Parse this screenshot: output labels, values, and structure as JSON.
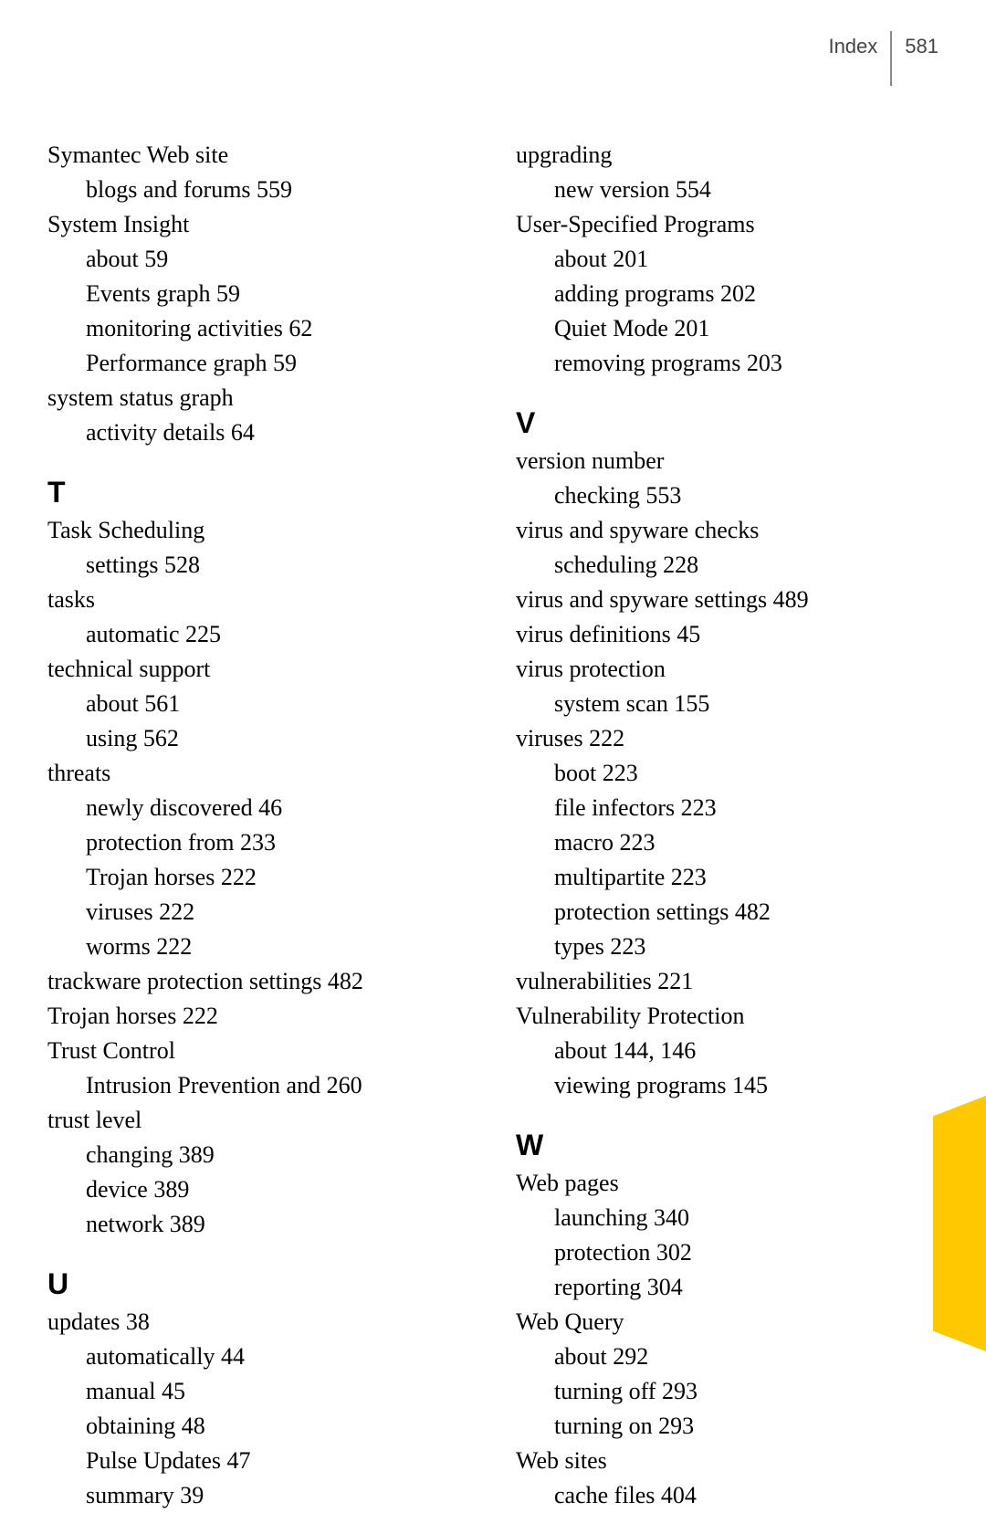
{
  "header": {
    "label": "Index",
    "page": "581"
  },
  "yellow_tab_color": "#ffc800",
  "left_col": {
    "pre_entries": [
      {
        "text": "Symantec Web site",
        "indent": 0
      },
      {
        "text": "blogs and forums  559",
        "indent": 1
      },
      {
        "text": "System Insight",
        "indent": 0
      },
      {
        "text": "about  59",
        "indent": 1
      },
      {
        "text": "Events graph  59",
        "indent": 1
      },
      {
        "text": "monitoring activities  62",
        "indent": 1
      },
      {
        "text": "Performance graph  59",
        "indent": 1
      },
      {
        "text": "system status graph",
        "indent": 0
      },
      {
        "text": "activity details  64",
        "indent": 1
      }
    ],
    "sections": [
      {
        "letter": "T",
        "entries": [
          {
            "text": "Task Scheduling",
            "indent": 0
          },
          {
            "text": "settings  528",
            "indent": 1
          },
          {
            "text": "tasks",
            "indent": 0
          },
          {
            "text": "automatic  225",
            "indent": 1
          },
          {
            "text": "technical support",
            "indent": 0
          },
          {
            "text": "about  561",
            "indent": 1
          },
          {
            "text": "using  562",
            "indent": 1
          },
          {
            "text": "threats",
            "indent": 0
          },
          {
            "text": "newly discovered  46",
            "indent": 1
          },
          {
            "text": "protection from  233",
            "indent": 1
          },
          {
            "text": "Trojan horses  222",
            "indent": 1
          },
          {
            "text": "viruses  222",
            "indent": 1
          },
          {
            "text": "worms  222",
            "indent": 1
          },
          {
            "text": "trackware protection settings  482",
            "indent": 0
          },
          {
            "text": "Trojan horses  222",
            "indent": 0
          },
          {
            "text": "Trust Control",
            "indent": 0
          },
          {
            "text": "Intrusion Prevention and  260",
            "indent": 1
          },
          {
            "text": "trust level",
            "indent": 0
          },
          {
            "text": "changing  389",
            "indent": 1
          },
          {
            "text": "device  389",
            "indent": 1
          },
          {
            "text": "network  389",
            "indent": 1
          }
        ]
      },
      {
        "letter": "U",
        "entries": [
          {
            "text": "updates  38",
            "indent": 0
          },
          {
            "text": "automatically  44",
            "indent": 1
          },
          {
            "text": "manual  45",
            "indent": 1
          },
          {
            "text": "obtaining  48",
            "indent": 1
          },
          {
            "text": "Pulse Updates  47",
            "indent": 1
          },
          {
            "text": "summary  39",
            "indent": 1
          }
        ]
      }
    ]
  },
  "right_col": {
    "pre_entries": [
      {
        "text": "upgrading",
        "indent": 0
      },
      {
        "text": "new version  554",
        "indent": 1
      },
      {
        "text": "User-Specified Programs",
        "indent": 0
      },
      {
        "text": "about  201",
        "indent": 1
      },
      {
        "text": "adding programs  202",
        "indent": 1
      },
      {
        "text": "Quiet Mode  201",
        "indent": 1
      },
      {
        "text": "removing programs  203",
        "indent": 1
      }
    ],
    "sections": [
      {
        "letter": "V",
        "entries": [
          {
            "text": "version number",
            "indent": 0
          },
          {
            "text": "checking  553",
            "indent": 1
          },
          {
            "text": "virus and spyware checks",
            "indent": 0
          },
          {
            "text": "scheduling  228",
            "indent": 1
          },
          {
            "text": "virus and spyware settings  489",
            "indent": 0
          },
          {
            "text": "virus definitions  45",
            "indent": 0
          },
          {
            "text": "virus protection",
            "indent": 0
          },
          {
            "text": "system scan  155",
            "indent": 1
          },
          {
            "text": "viruses  222",
            "indent": 0
          },
          {
            "text": "boot  223",
            "indent": 1
          },
          {
            "text": "file infectors  223",
            "indent": 1
          },
          {
            "text": "macro  223",
            "indent": 1
          },
          {
            "text": "multipartite  223",
            "indent": 1
          },
          {
            "text": "protection settings  482",
            "indent": 1
          },
          {
            "text": "types  223",
            "indent": 1
          },
          {
            "text": "vulnerabilities  221",
            "indent": 0
          },
          {
            "text": "Vulnerability Protection",
            "indent": 0
          },
          {
            "text": "about  144, 146",
            "indent": 1
          },
          {
            "text": "viewing programs  145",
            "indent": 1
          }
        ]
      },
      {
        "letter": "W",
        "entries": [
          {
            "text": "Web pages",
            "indent": 0
          },
          {
            "text": "launching  340",
            "indent": 1
          },
          {
            "text": "protection  302",
            "indent": 1
          },
          {
            "text": "reporting  304",
            "indent": 1
          },
          {
            "text": "Web Query",
            "indent": 0
          },
          {
            "text": "about  292",
            "indent": 1
          },
          {
            "text": "turning off  293",
            "indent": 1
          },
          {
            "text": "turning on  293",
            "indent": 1
          },
          {
            "text": "Web sites",
            "indent": 0
          },
          {
            "text": "cache files  404",
            "indent": 1
          }
        ]
      }
    ]
  }
}
